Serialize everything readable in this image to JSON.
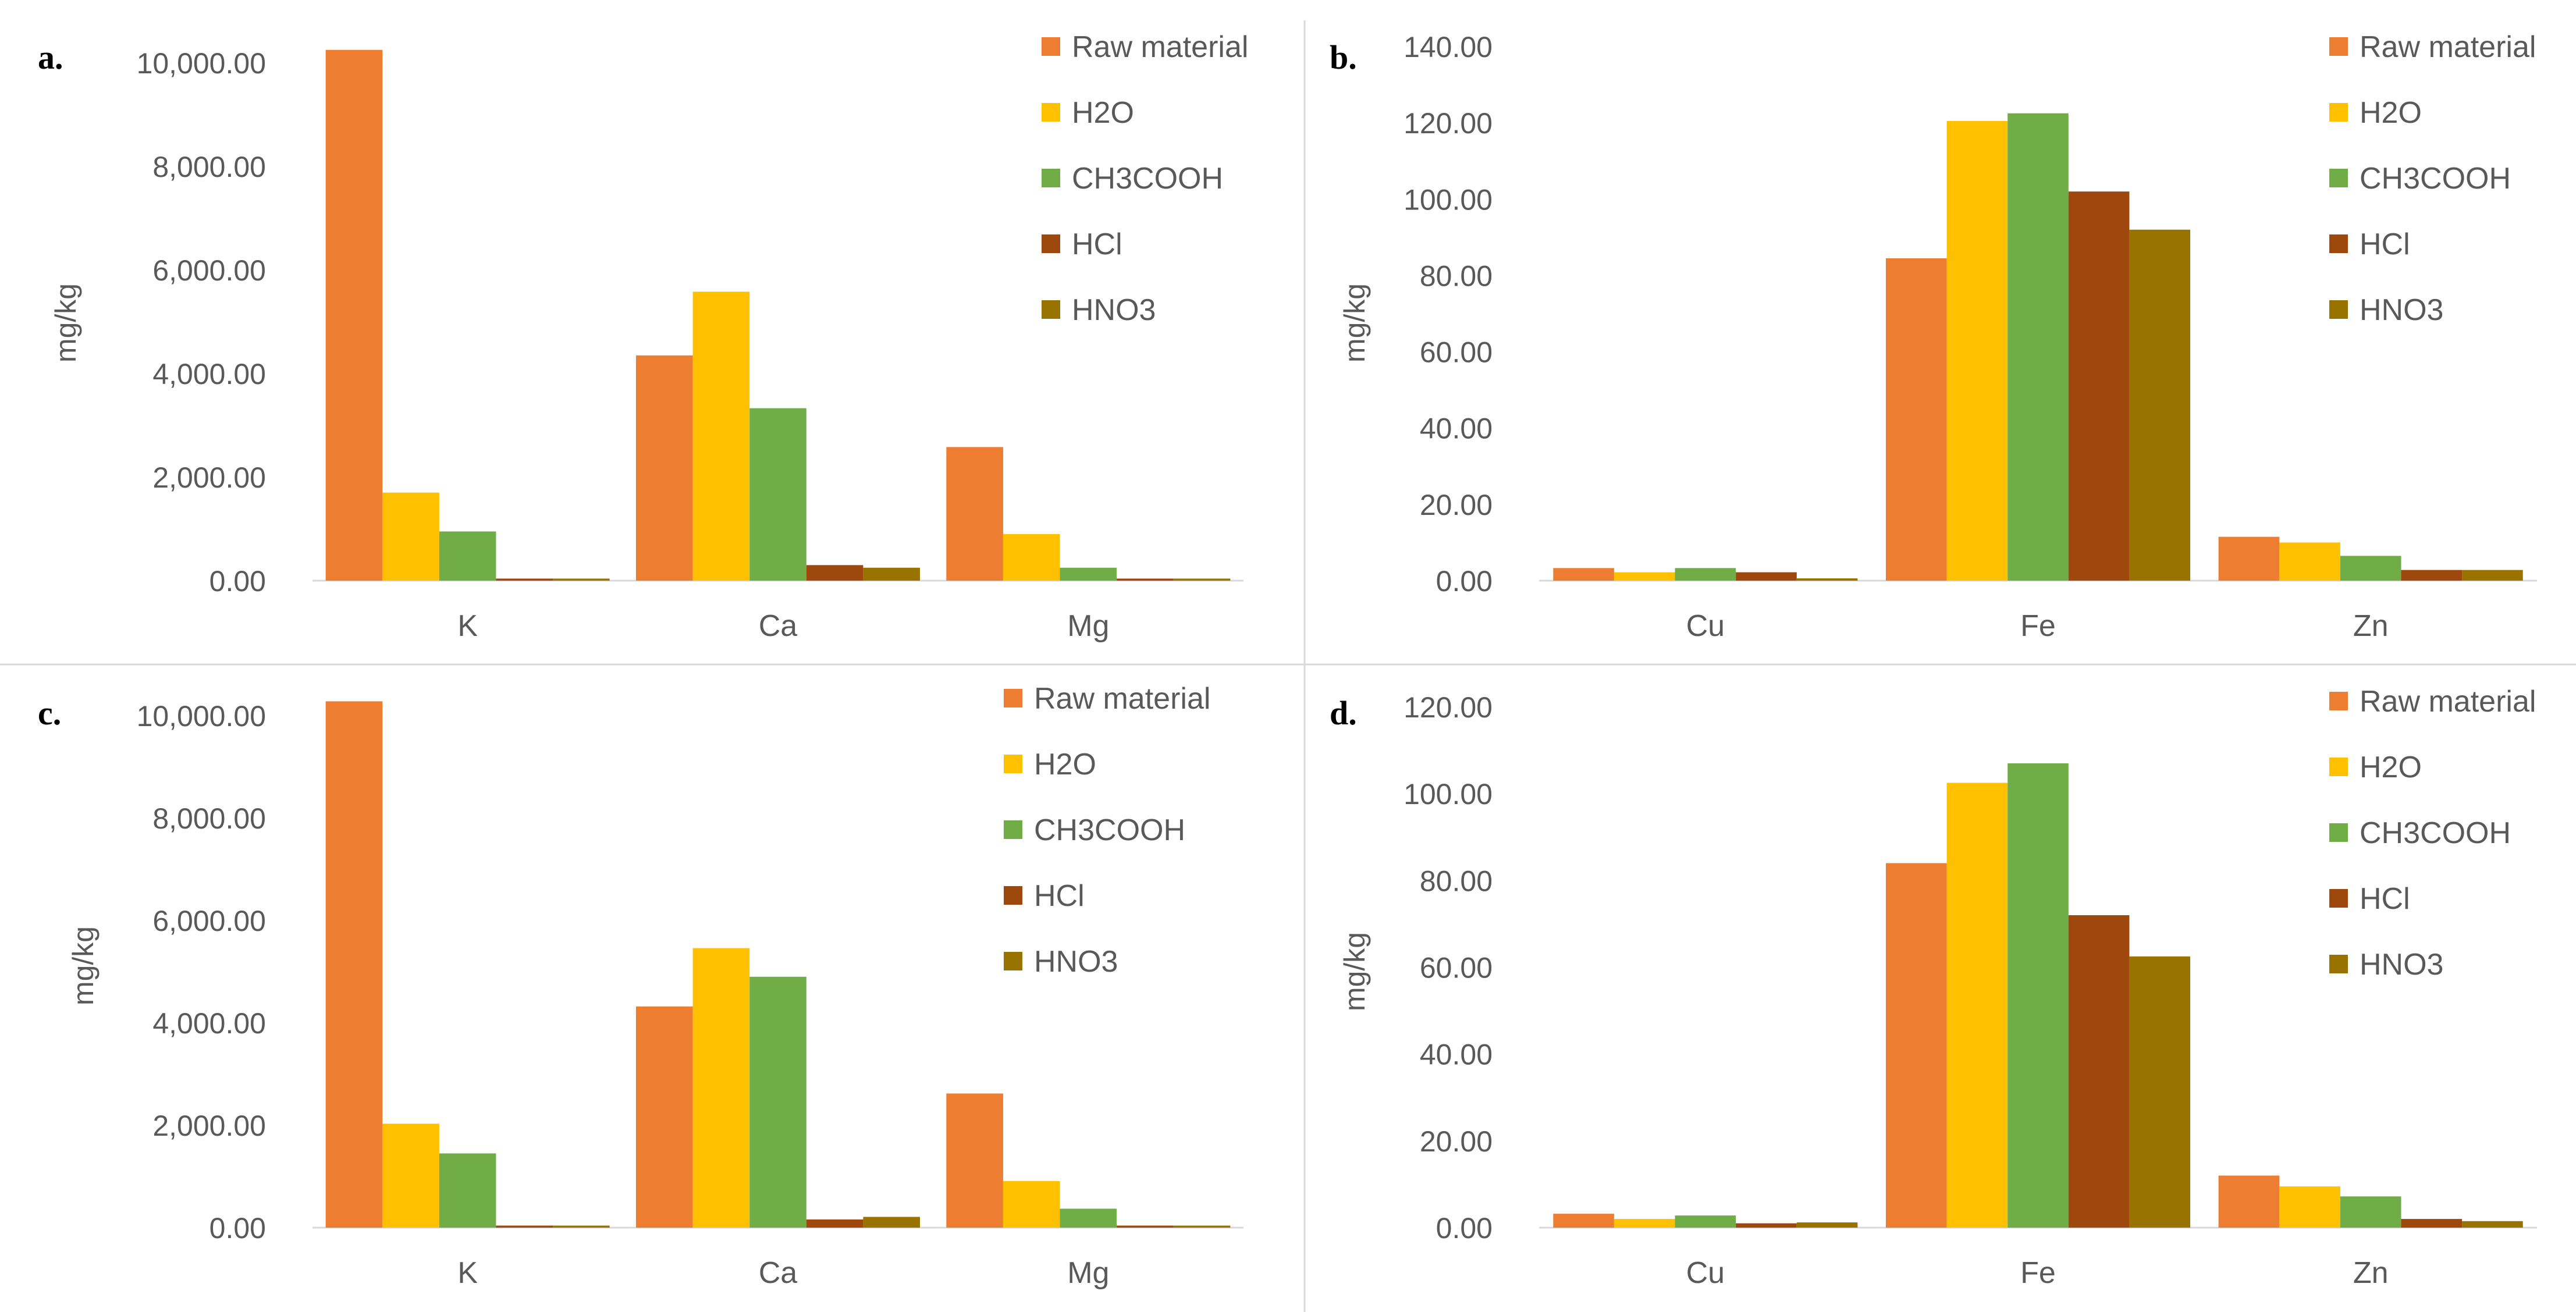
{
  "colors": {
    "raw_material": "#ED7D31",
    "h2o": "#FFC000",
    "ch3cooh": "#70AD47",
    "hcl": "#9E480E",
    "hno3": "#997300",
    "axis": "#D9D9D9",
    "divider": "#D9D9D9",
    "text": "#595959"
  },
  "chart_data": [
    {
      "panel": "a.",
      "type": "bar",
      "ylabel": "mg/kg",
      "ylim": [
        0,
        10000
      ],
      "yticks": [
        0,
        2000,
        4000,
        6000,
        8000,
        10000
      ],
      "ytick_labels": [
        "0.00",
        "2,000.00",
        "4,000.00",
        "6,000.00",
        "8,000.00",
        "10,000.00"
      ],
      "categories": [
        "K",
        "Ca",
        "Mg"
      ],
      "legend": [
        "Raw material",
        "H2O",
        "CH3COOH",
        "HCl",
        "HNO3"
      ],
      "series": [
        {
          "name": "Raw material",
          "values": [
            10250,
            4350,
            2580
          ]
        },
        {
          "name": "H2O",
          "values": [
            1700,
            5580,
            900
          ]
        },
        {
          "name": "CH3COOH",
          "values": [
            950,
            3330,
            250
          ]
        },
        {
          "name": "HCl",
          "values": [
            40,
            300,
            40
          ]
        },
        {
          "name": "HNO3",
          "values": [
            40,
            250,
            40
          ]
        }
      ]
    },
    {
      "panel": "b.",
      "type": "bar",
      "ylabel": "mg/kg",
      "ylim": [
        0,
        140
      ],
      "yticks": [
        0,
        20,
        40,
        60,
        80,
        100,
        120,
        140
      ],
      "ytick_labels": [
        "0.00",
        "20.00",
        "40.00",
        "60.00",
        "80.00",
        "100.00",
        "120.00",
        "140.00"
      ],
      "categories": [
        "Cu",
        "Fe",
        "Zn"
      ],
      "legend": [
        "Raw material",
        "H2O",
        "CH3COOH",
        "HCl",
        "HNO3"
      ],
      "series": [
        {
          "name": "Raw material",
          "values": [
            3.3,
            84.5,
            11.5
          ]
        },
        {
          "name": "H2O",
          "values": [
            2.2,
            120.5,
            10
          ]
        },
        {
          "name": "CH3COOH",
          "values": [
            3.3,
            122.5,
            6.5
          ]
        },
        {
          "name": "HCl",
          "values": [
            2.2,
            102,
            2.8
          ]
        },
        {
          "name": "HNO3",
          "values": [
            0.6,
            92,
            2.8
          ]
        }
      ]
    },
    {
      "panel": "c.",
      "type": "bar",
      "ylabel": "mg/kg",
      "ylim": [
        0,
        10000
      ],
      "yticks": [
        0,
        2000,
        4000,
        6000,
        8000,
        10000
      ],
      "ytick_labels": [
        "0.00",
        "2,000.00",
        "4,000.00",
        "6,000.00",
        "8,000.00",
        "10,000.00"
      ],
      "categories": [
        "K",
        "Ca",
        "Mg"
      ],
      "legend": [
        "Raw material",
        "H2O",
        "CH3COOH",
        "HCl",
        "HNO3"
      ],
      "series": [
        {
          "name": "Raw material",
          "values": [
            10280,
            4320,
            2620
          ]
        },
        {
          "name": "H2O",
          "values": [
            2030,
            5460,
            910
          ]
        },
        {
          "name": "CH3COOH",
          "values": [
            1450,
            4900,
            370
          ]
        },
        {
          "name": "HCl",
          "values": [
            40,
            160,
            40
          ]
        },
        {
          "name": "HNO3",
          "values": [
            40,
            210,
            40
          ]
        }
      ]
    },
    {
      "panel": "d.",
      "type": "bar",
      "ylabel": "mg/kg",
      "ylim": [
        0,
        120
      ],
      "yticks": [
        0,
        20,
        40,
        60,
        80,
        100,
        120
      ],
      "ytick_labels": [
        "0.00",
        "20.00",
        "40.00",
        "60.00",
        "80.00",
        "100.00",
        "120.00"
      ],
      "categories": [
        "Cu",
        "Fe",
        "Zn"
      ],
      "legend": [
        "Raw material",
        "H2O",
        "CH3COOH",
        "HCl",
        "HNO3"
      ],
      "series": [
        {
          "name": "Raw material",
          "values": [
            3.2,
            84,
            12
          ]
        },
        {
          "name": "H2O",
          "values": [
            2,
            102.5,
            9.5
          ]
        },
        {
          "name": "CH3COOH",
          "values": [
            2.8,
            107,
            7.2
          ]
        },
        {
          "name": "HCl",
          "values": [
            1,
            72,
            2
          ]
        },
        {
          "name": "HNO3",
          "values": [
            1.2,
            62.5,
            1.5
          ]
        }
      ]
    }
  ]
}
